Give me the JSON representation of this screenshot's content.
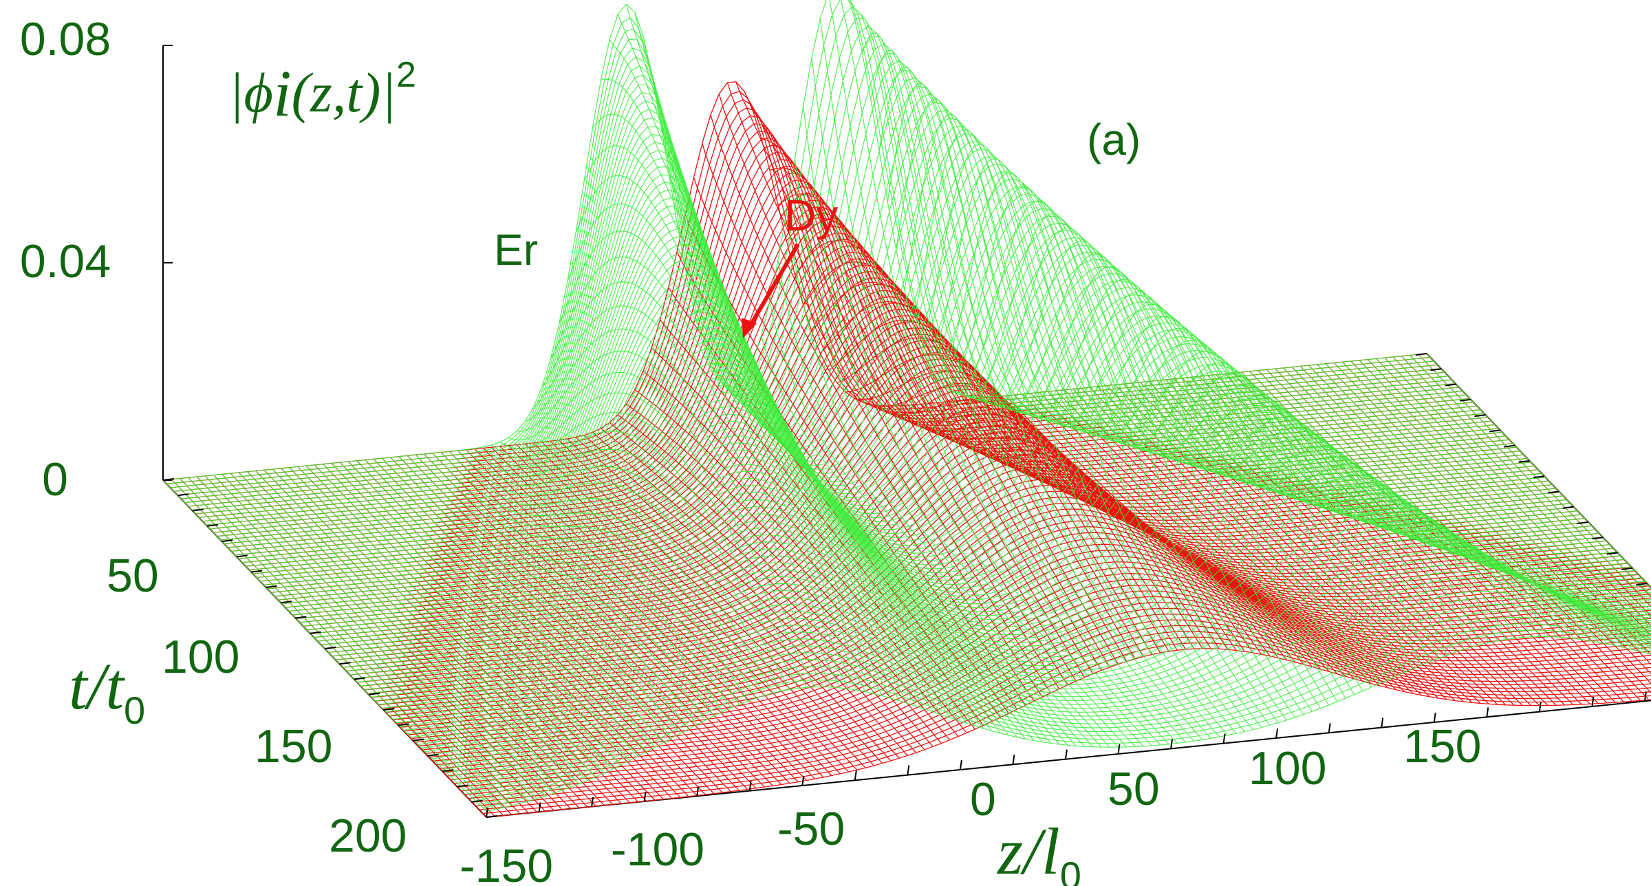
{
  "chart_data": {
    "type": "surface3d",
    "panel_label": "(a)",
    "zlabel": {
      "main": "|ϕ",
      "sub": "i",
      "paren": "(z,t)|",
      "sup": "2"
    },
    "xlabel": {
      "main": "z/l",
      "sub": "0"
    },
    "ylabel": {
      "main": "t/t",
      "sub": "0"
    },
    "x_ticks": [
      "-150",
      "-100",
      "-50",
      "0",
      "50",
      "100",
      "150"
    ],
    "y_ticks": [
      "50",
      "100",
      "150",
      "200"
    ],
    "z_ticks": [
      "0",
      "0.04",
      "0.08"
    ],
    "xlim": [
      -150,
      150
    ],
    "ylim": [
      0,
      220
    ],
    "zlim": [
      0,
      0.08
    ],
    "series": [
      {
        "name": "Er",
        "color": "#33ee33",
        "peaks": [
          {
            "z_start": -40,
            "z_end": -75,
            "amp_start": 0.079,
            "amp_end": 0.018,
            "width": 14
          },
          {
            "z_start": 10,
            "z_end": 95,
            "amp_start": 0.079,
            "amp_end": 0.014,
            "width": 14
          }
        ]
      },
      {
        "name": "Dy",
        "color": "#ee1111",
        "peaks": [
          {
            "z_start": -15,
            "z_end": 15,
            "amp_start": 0.063,
            "amp_end": 0.018,
            "width": 16
          }
        ]
      }
    ],
    "grid": true
  }
}
